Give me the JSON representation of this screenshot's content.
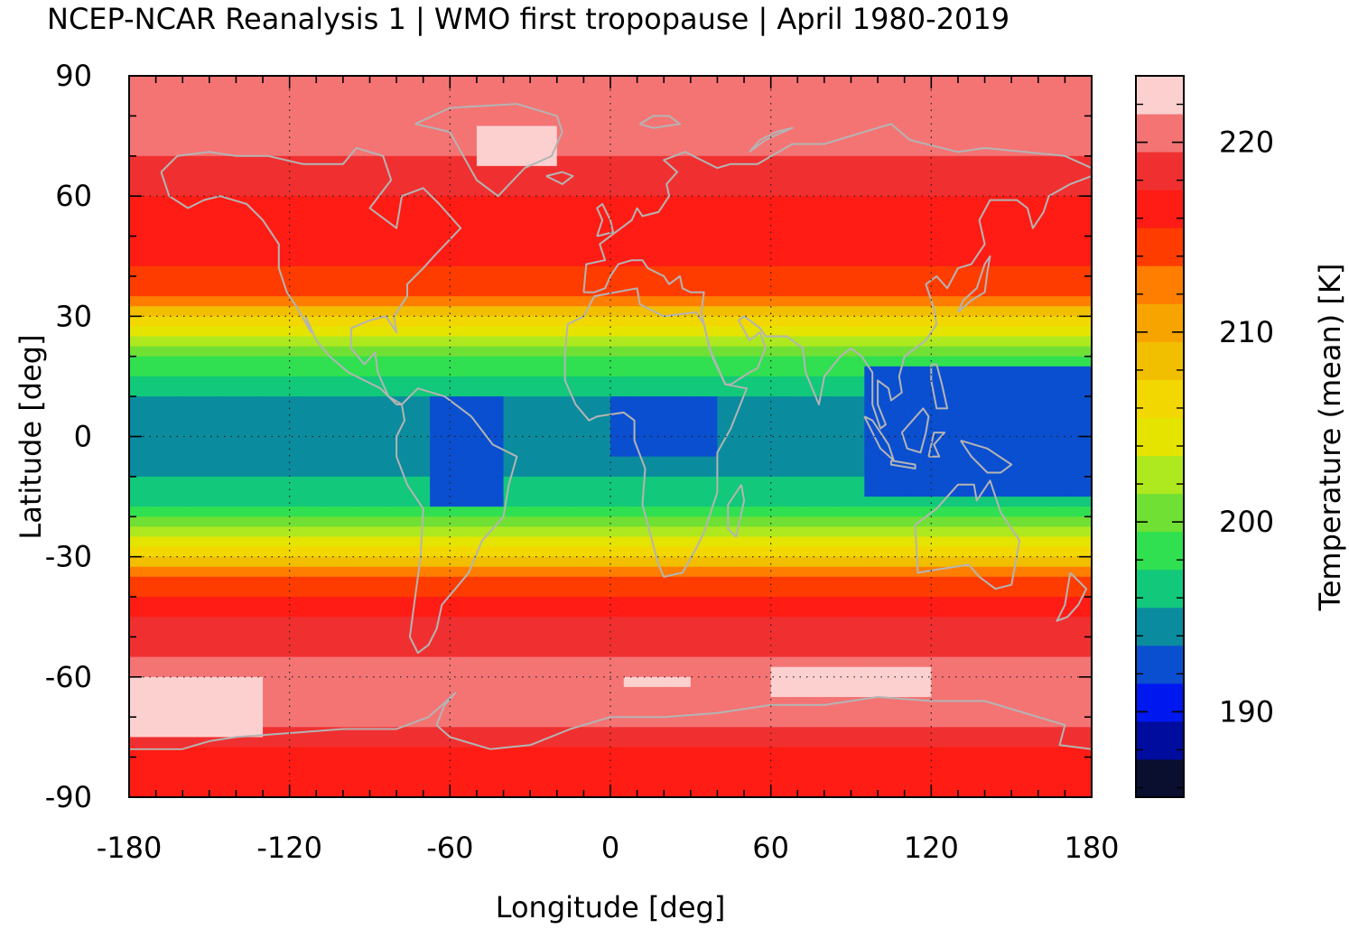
{
  "title": "NCEP-NCAR Reanalysis 1 | WMO first tropopause | April 1980-2019",
  "chart_data": {
    "type": "heatmap",
    "xlabel": "Longitude [deg]",
    "ylabel": "Latitude [deg]",
    "xlim": [
      -180,
      180
    ],
    "ylim": [
      -90,
      90
    ],
    "x_ticks": [
      "-180",
      "-120",
      "-60",
      "0",
      "60",
      "120",
      "180"
    ],
    "y_ticks": [
      "90",
      "60",
      "30",
      "0",
      "-30",
      "-60",
      "-90"
    ],
    "grid": true,
    "colorbar": {
      "label": "Temperature (mean) [K]",
      "ticks": [
        "220",
        "210",
        "200",
        "190"
      ],
      "range": [
        185.5,
        223.5
      ],
      "levels": [
        {
          "min": 185.5,
          "max": 187.5,
          "color": "#0a0f30"
        },
        {
          "min": 187.5,
          "max": 189.5,
          "color": "#000c9e"
        },
        {
          "min": 189.5,
          "max": 191.5,
          "color": "#0018f0"
        },
        {
          "min": 191.5,
          "max": 193.5,
          "color": "#0a4fd0"
        },
        {
          "min": 193.5,
          "max": 195.5,
          "color": "#0a8c9e"
        },
        {
          "min": 195.5,
          "max": 197.5,
          "color": "#12c87a"
        },
        {
          "min": 197.5,
          "max": 199.5,
          "color": "#30e050"
        },
        {
          "min": 199.5,
          "max": 201.5,
          "color": "#70e034"
        },
        {
          "min": 201.5,
          "max": 203.5,
          "color": "#aee81e"
        },
        {
          "min": 203.5,
          "max": 205.5,
          "color": "#e4e400"
        },
        {
          "min": 205.5,
          "max": 207.5,
          "color": "#f2d800"
        },
        {
          "min": 207.5,
          "max": 209.5,
          "color": "#f2be00"
        },
        {
          "min": 209.5,
          "max": 211.5,
          "color": "#f7a400"
        },
        {
          "min": 211.5,
          "max": 213.5,
          "color": "#ff7e00"
        },
        {
          "min": 213.5,
          "max": 215.5,
          "color": "#ff3c00"
        },
        {
          "min": 215.5,
          "max": 217.5,
          "color": "#ff1c14"
        },
        {
          "min": 217.5,
          "max": 219.5,
          "color": "#f03030"
        },
        {
          "min": 219.5,
          "max": 221.5,
          "color": "#f47474"
        },
        {
          "min": 221.5,
          "max": 223.5,
          "color": "#fdd0d0"
        }
      ]
    },
    "zonal_profile": [
      {
        "lat": -90,
        "value": 215.5
      },
      {
        "lat": -85,
        "value": 215.8
      },
      {
        "lat": -80,
        "value": 216.8
      },
      {
        "lat": -75,
        "value": 219.0
      },
      {
        "lat": -70,
        "value": 220.6
      },
      {
        "lat": -65,
        "value": 221.3
      },
      {
        "lat": -60,
        "value": 220.8
      },
      {
        "lat": -55,
        "value": 219.8
      },
      {
        "lat": -50,
        "value": 218.5
      },
      {
        "lat": -45,
        "value": 217.2
      },
      {
        "lat": -40,
        "value": 216.0
      },
      {
        "lat": -37,
        "value": 214.5
      },
      {
        "lat": -34,
        "value": 212.0
      },
      {
        "lat": -31,
        "value": 209.0
      },
      {
        "lat": -28,
        "value": 205.8
      },
      {
        "lat": -25,
        "value": 202.8
      },
      {
        "lat": -22,
        "value": 200.4
      },
      {
        "lat": -19,
        "value": 198.5
      },
      {
        "lat": -15,
        "value": 196.6
      },
      {
        "lat": -10,
        "value": 195.2
      },
      {
        "lat": -5,
        "value": 194.5
      },
      {
        "lat": 0,
        "value": 194.3
      },
      {
        "lat": 5,
        "value": 194.5
      },
      {
        "lat": 10,
        "value": 195.3
      },
      {
        "lat": 14,
        "value": 196.8
      },
      {
        "lat": 18,
        "value": 198.8
      },
      {
        "lat": 22,
        "value": 201.5
      },
      {
        "lat": 26,
        "value": 204.6
      },
      {
        "lat": 30,
        "value": 208.0
      },
      {
        "lat": 33,
        "value": 211.0
      },
      {
        "lat": 36,
        "value": 213.4
      },
      {
        "lat": 40,
        "value": 215.0
      },
      {
        "lat": 45,
        "value": 215.8
      },
      {
        "lat": 50,
        "value": 216.4
      },
      {
        "lat": 55,
        "value": 216.8
      },
      {
        "lat": 60,
        "value": 217.4
      },
      {
        "lat": 65,
        "value": 218.2
      },
      {
        "lat": 70,
        "value": 219.4
      },
      {
        "lat": 75,
        "value": 220.2
      },
      {
        "lat": 80,
        "value": 219.9
      },
      {
        "lat": 85,
        "value": 219.6
      },
      {
        "lat": 90,
        "value": 219.6
      }
    ],
    "regional_features": [
      {
        "region": "Maritime Continent / Indonesia",
        "lon": [
          95,
          180
        ],
        "lat": [
          -15,
          18
        ],
        "value": 192.5
      },
      {
        "region": "Amazon",
        "lon": [
          -68,
          -40
        ],
        "lat": [
          -18,
          10
        ],
        "value": 192.5
      },
      {
        "region": "Central Africa",
        "lon": [
          0,
          40
        ],
        "lat": [
          -5,
          10
        ],
        "value": 193.0
      },
      {
        "region": "Greenland",
        "lon": [
          -50,
          -20
        ],
        "lat": [
          68,
          78
        ],
        "value": 222.5
      },
      {
        "region": "South Pacific high latitude",
        "lon": [
          -180,
          -130
        ],
        "lat": [
          -74,
          -60
        ],
        "value": 222.5
      },
      {
        "region": "South Indian Ocean high latitude",
        "lon": [
          60,
          120
        ],
        "lat": [
          -64,
          -57
        ],
        "value": 222.5
      },
      {
        "region": "South of Africa",
        "lon": [
          5,
          30
        ],
        "lat": [
          -63,
          -59
        ],
        "value": 222.5
      }
    ]
  }
}
